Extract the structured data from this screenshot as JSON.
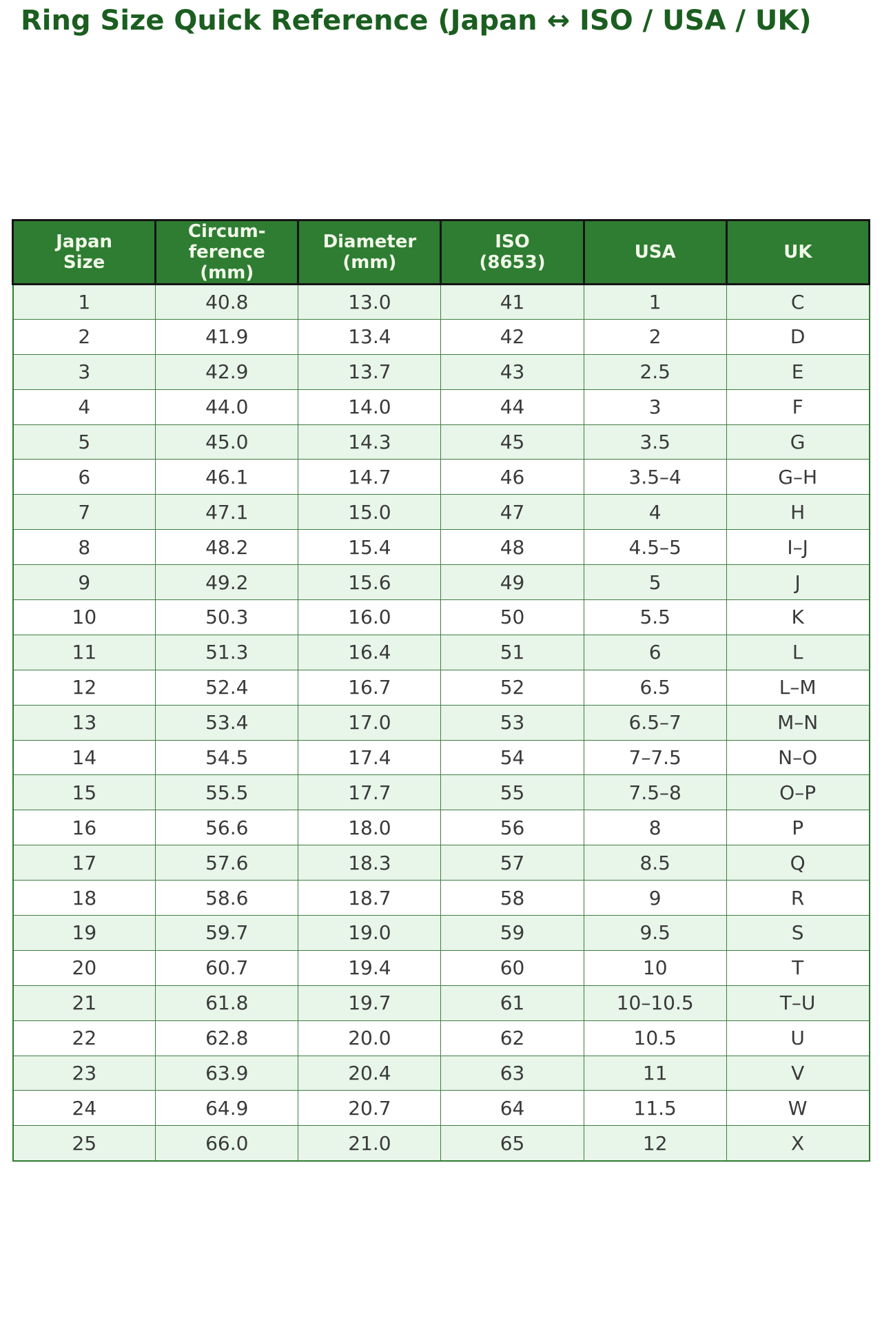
{
  "page": {
    "title": "Ring Size Quick Reference (Japan ↔ ISO / USA / UK)"
  },
  "colors": {
    "title_green": "#1b5e20",
    "header_bg": "#2e7d32",
    "header_text": "#f1f8e9",
    "header_border": "#141414",
    "row_alt_bg": "#e8f5e9",
    "row_bg": "#ffffff",
    "grid_green": "#3f7d42",
    "outer_green": "#2e7d32",
    "cell_text": "#3a3a3a"
  },
  "chart_data": {
    "type": "table",
    "title": "Ring Size Quick Reference (Japan ↔ ISO / USA / UK)",
    "columns": [
      "Japan\nSize",
      "Circum-\nference\n(mm)",
      "Diameter\n(mm)",
      "ISO\n(8653)",
      "USA",
      "UK"
    ],
    "rows": [
      [
        "1",
        "40.8",
        "13.0",
        "41",
        "1",
        "C"
      ],
      [
        "2",
        "41.9",
        "13.4",
        "42",
        "2",
        "D"
      ],
      [
        "3",
        "42.9",
        "13.7",
        "43",
        "2.5",
        "E"
      ],
      [
        "4",
        "44.0",
        "14.0",
        "44",
        "3",
        "F"
      ],
      [
        "5",
        "45.0",
        "14.3",
        "45",
        "3.5",
        "G"
      ],
      [
        "6",
        "46.1",
        "14.7",
        "46",
        "3.5–4",
        "G–H"
      ],
      [
        "7",
        "47.1",
        "15.0",
        "47",
        "4",
        "H"
      ],
      [
        "8",
        "48.2",
        "15.4",
        "48",
        "4.5–5",
        "I–J"
      ],
      [
        "9",
        "49.2",
        "15.6",
        "49",
        "5",
        "J"
      ],
      [
        "10",
        "50.3",
        "16.0",
        "50",
        "5.5",
        "K"
      ],
      [
        "11",
        "51.3",
        "16.4",
        "51",
        "6",
        "L"
      ],
      [
        "12",
        "52.4",
        "16.7",
        "52",
        "6.5",
        "L–M"
      ],
      [
        "13",
        "53.4",
        "17.0",
        "53",
        "6.5–7",
        "M–N"
      ],
      [
        "14",
        "54.5",
        "17.4",
        "54",
        "7–7.5",
        "N–O"
      ],
      [
        "15",
        "55.5",
        "17.7",
        "55",
        "7.5–8",
        "O–P"
      ],
      [
        "16",
        "56.6",
        "18.0",
        "56",
        "8",
        "P"
      ],
      [
        "17",
        "57.6",
        "18.3",
        "57",
        "8.5",
        "Q"
      ],
      [
        "18",
        "58.6",
        "18.7",
        "58",
        "9",
        "R"
      ],
      [
        "19",
        "59.7",
        "19.0",
        "59",
        "9.5",
        "S"
      ],
      [
        "20",
        "60.7",
        "19.4",
        "60",
        "10",
        "T"
      ],
      [
        "21",
        "61.8",
        "19.7",
        "61",
        "10–10.5",
        "T–U"
      ],
      [
        "22",
        "62.8",
        "20.0",
        "62",
        "10.5",
        "U"
      ],
      [
        "23",
        "63.9",
        "20.4",
        "63",
        "11",
        "V"
      ],
      [
        "24",
        "64.9",
        "20.7",
        "64",
        "11.5",
        "W"
      ],
      [
        "25",
        "66.0",
        "21.0",
        "65",
        "12",
        "X"
      ]
    ]
  }
}
